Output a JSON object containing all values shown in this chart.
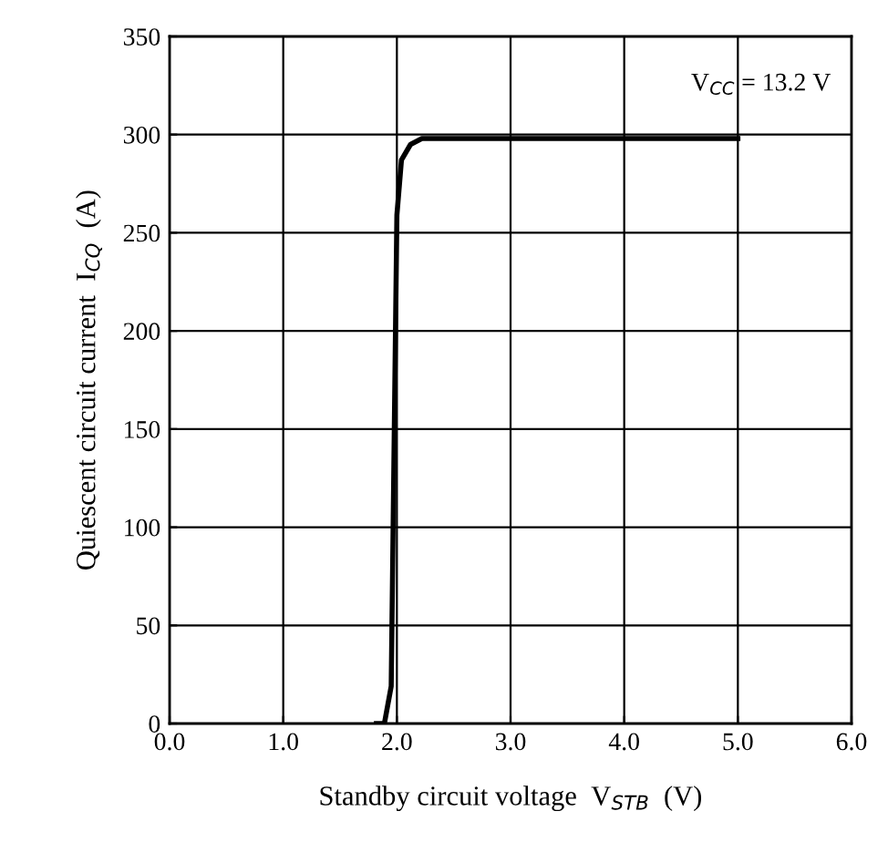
{
  "chart_data": {
    "type": "line",
    "xlabel": "Standby circuit voltage  V$_{STB}$  (V)",
    "ylabel": "Quiescent circuit current  I$_{CQ}$  (A)",
    "annotations": [
      "V$_{CC}$ = 13.2 V"
    ],
    "series": [
      {
        "color": "#000000",
        "x": [
          1.82,
          1.89,
          1.95,
          2.0,
          2.04,
          2.12,
          2.22,
          5.0
        ],
        "values": [
          0,
          0,
          19,
          259,
          287,
          295,
          298,
          298
        ]
      }
    ],
    "xlim": [
      0,
      6
    ],
    "xticks": [
      {
        "value": 0,
        "label": "0.0"
      },
      {
        "value": 1,
        "label": "1.0"
      },
      {
        "value": 2,
        "label": "2.0"
      },
      {
        "value": 3,
        "label": "3.0"
      },
      {
        "value": 4,
        "label": "4.0"
      },
      {
        "value": 5,
        "label": "5.0"
      },
      {
        "value": 6,
        "label": "6.0"
      }
    ],
    "ylim": [
      0,
      350
    ],
    "yticks": [
      0,
      50,
      100,
      150,
      200,
      250,
      300,
      350
    ],
    "grid": true
  }
}
